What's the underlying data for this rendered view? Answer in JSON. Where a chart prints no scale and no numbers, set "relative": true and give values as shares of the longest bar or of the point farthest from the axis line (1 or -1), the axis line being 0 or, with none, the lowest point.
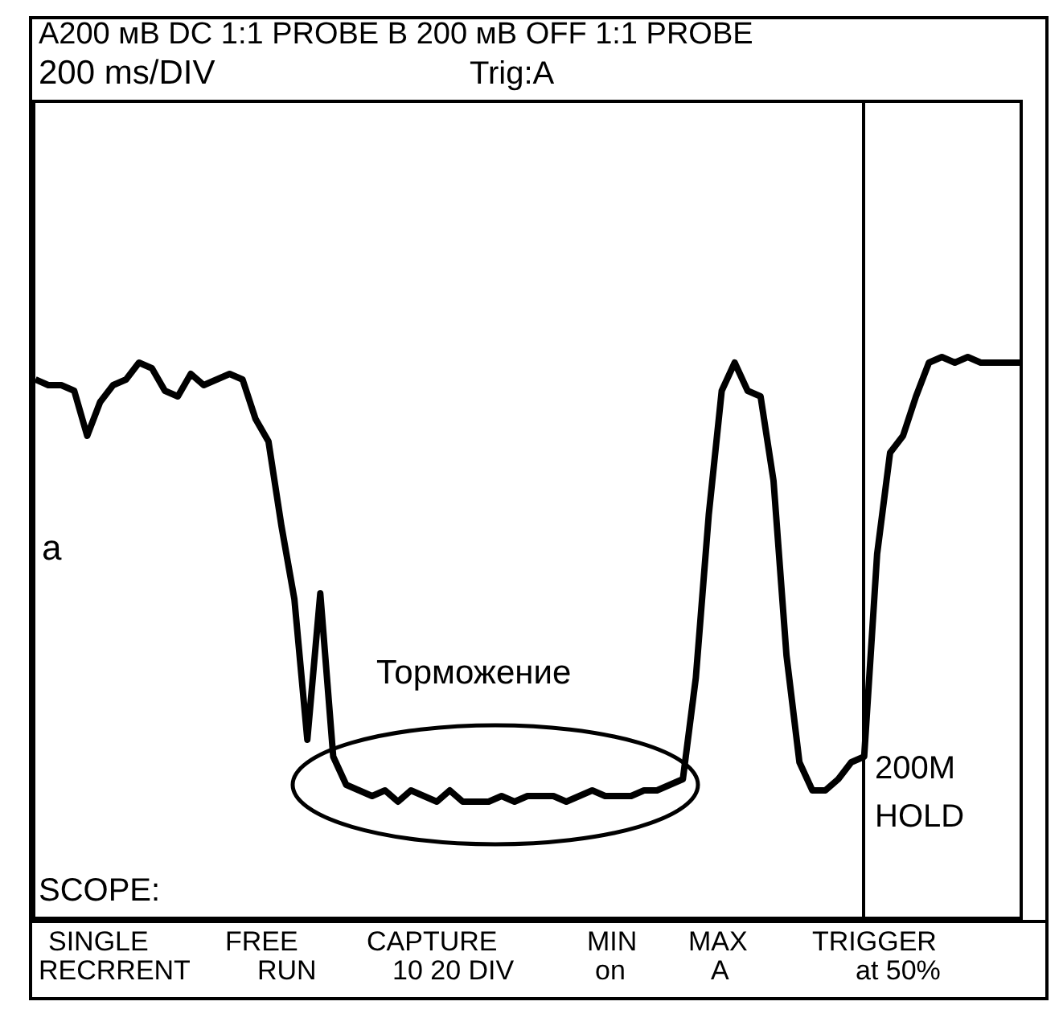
{
  "chart_data": {
    "type": "line",
    "relative": true,
    "title": "A200 мВ DC 1:1 PROBE B 200 мВ OFF 1:1 PROBE",
    "subtitle": "200 ms/DIV",
    "categories": [
      null,
      null,
      null,
      null,
      null,
      null,
      null,
      null,
      null,
      null,
      null,
      null,
      null,
      null,
      null,
      null,
      null,
      null,
      null,
      null,
      null,
      null,
      null,
      null,
      null,
      null,
      null,
      null,
      null,
      null,
      null,
      null,
      null,
      null,
      null,
      null,
      null,
      null,
      null,
      null,
      null,
      null,
      null,
      null,
      null,
      null,
      null,
      null,
      null,
      null,
      null,
      null,
      null,
      null,
      null,
      null,
      null,
      null,
      null,
      null,
      null,
      null,
      null,
      null,
      null,
      null,
      null,
      null,
      null,
      null,
      null,
      null,
      null,
      null,
      null,
      null,
      null
    ],
    "series": [
      {
        "color": "#000000",
        "values": [
          0.96,
          0.95,
          0.95,
          0.94,
          0.86,
          0.92,
          0.95,
          0.96,
          0.99,
          0.98,
          0.94,
          0.93,
          0.97,
          0.95,
          0.96,
          0.97,
          0.96,
          0.89,
          0.85,
          0.7,
          0.57,
          0.32,
          0.58,
          0.29,
          0.24,
          0.23,
          0.22,
          0.23,
          0.21,
          0.23,
          0.22,
          0.21,
          0.23,
          0.21,
          0.21,
          0.21,
          0.22,
          0.21,
          0.22,
          0.22,
          0.22,
          0.21,
          0.22,
          0.23,
          0.22,
          0.22,
          0.22,
          0.23,
          0.23,
          0.24,
          0.25,
          0.43,
          0.72,
          0.94,
          0.99,
          0.94,
          0.93,
          0.78,
          0.47,
          0.28,
          0.23,
          0.23,
          0.25,
          0.28,
          0.29,
          0.65,
          0.83,
          0.86,
          0.93,
          0.99,
          1.0,
          0.99,
          1.0,
          0.99,
          0.99,
          0.99,
          0.99
        ]
      }
    ],
    "annotations": [
      "Trig:A",
      "a",
      "Торможение",
      "200M",
      "HOLD",
      "SCOPE:",
      "SINGLE",
      "RECRRENT",
      "FREE",
      "RUN",
      "CAPTURE",
      "10 20 DIV",
      "MIN",
      "on",
      "MAX",
      "A",
      "TRIGGER",
      "at 50%"
    ],
    "marker": "none",
    "line_style": "solid"
  }
}
